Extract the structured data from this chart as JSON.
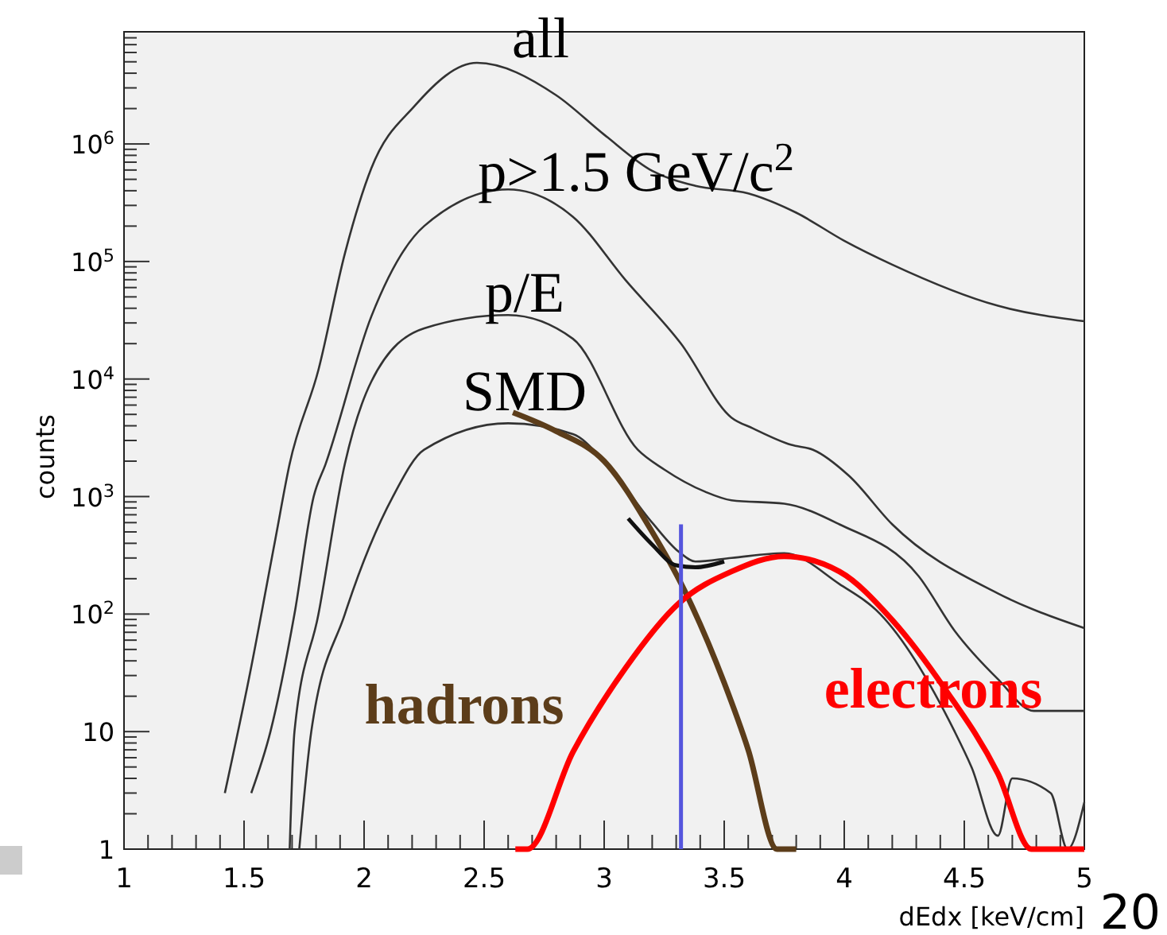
{
  "chart_data": {
    "type": "line",
    "xlabel": "dEdx [keV/cm]",
    "ylabel": "counts",
    "log": "y",
    "xlim": [
      1,
      5
    ],
    "ylim": [
      1,
      9000000
    ],
    "xticks": [
      1,
      {
        "value": 1.1,
        "label": null
      },
      {
        "value": 1.2,
        "label": null
      },
      {
        "value": 1.3,
        "label": null
      },
      {
        "value": 1.4,
        "label": null
      },
      1.5,
      {
        "value": 1.6,
        "label": null
      },
      {
        "value": 1.7,
        "label": null
      },
      {
        "value": 1.8,
        "label": null
      },
      {
        "value": 1.9,
        "label": null
      },
      2,
      {
        "value": 2.1,
        "label": null
      },
      {
        "value": 2.2,
        "label": null
      },
      {
        "value": 2.3,
        "label": null
      },
      {
        "value": 2.4,
        "label": null
      },
      2.5,
      {
        "value": 2.6,
        "label": null
      },
      {
        "value": 2.7,
        "label": null
      },
      {
        "value": 2.8,
        "label": null
      },
      {
        "value": 2.9,
        "label": null
      },
      3,
      {
        "value": 3.1,
        "label": null
      },
      {
        "value": 3.2,
        "label": null
      },
      {
        "value": 3.3,
        "label": null
      },
      {
        "value": 3.4,
        "label": null
      },
      3.5,
      {
        "value": 3.6,
        "label": null
      },
      {
        "value": 3.7,
        "label": null
      },
      {
        "value": 3.8,
        "label": null
      },
      {
        "value": 3.9,
        "label": null
      },
      4,
      {
        "value": 4.1,
        "label": null
      },
      {
        "value": 4.2,
        "label": null
      },
      {
        "value": 4.3,
        "label": null
      },
      {
        "value": 4.4,
        "label": null
      },
      4.5,
      {
        "value": 4.6,
        "label": null
      },
      {
        "value": 4.7,
        "label": null
      },
      {
        "value": 4.8,
        "label": null
      },
      {
        "value": 4.9,
        "label": null
      },
      5
    ],
    "yticks": [
      1,
      10,
      {
        "value": 100,
        "label": "10$^{2}$"
      },
      {
        "value": 1000,
        "label": "10$^{3}$"
      },
      {
        "value": 10000,
        "label": "10$^{4}$"
      },
      {
        "value": 100000,
        "label": "10$^{5}$"
      },
      {
        "value": 1000000,
        "label": "10$^{6}$"
      }
    ],
    "series": [
      {
        "name": "all",
        "color": "#333333",
        "x": [
          1.42,
          1.52,
          1.63,
          1.69,
          1.81,
          1.92,
          2.03,
          2.21,
          2.47,
          2.8,
          3.0,
          3.2,
          3.38,
          3.6,
          3.8,
          4.0,
          4.2,
          4.64,
          5.0
        ],
        "values": [
          3,
          28,
          430,
          1900,
          12000,
          117000,
          620000,
          2100000,
          4900000,
          2600000,
          1200000,
          590000,
          440000,
          380000,
          260000,
          150000,
          94000,
          42000,
          31000
        ]
      },
      {
        "name": "p>1.5 GeV/c$^{2}$",
        "color": "#333333",
        "x": [
          1.53,
          1.61,
          1.71,
          1.79,
          1.84,
          2.03,
          2.25,
          2.6,
          2.87,
          3.09,
          3.32,
          3.53,
          3.62,
          3.78,
          3.87,
          4.02,
          4.2,
          4.64,
          5.0
        ],
        "values": [
          3,
          10,
          100,
          1000,
          1900,
          34000,
          200000,
          410000,
          240000,
          69000,
          20000,
          4700,
          3800,
          2750,
          2500,
          1500,
          580,
          150,
          76
        ]
      },
      {
        "name": "p/E",
        "color": "#333333",
        "x": [
          1.69,
          1.71,
          1.81,
          1.92,
          2.03,
          2.25,
          2.6,
          2.87,
          3.14,
          3.25,
          3.42,
          3.53,
          3.75,
          3.98,
          4.31,
          4.46,
          4.64,
          4.79,
          5.0
        ],
        "values": [
          1,
          10,
          100,
          1900,
          9500,
          27000,
          35000,
          22000,
          2500,
          1700,
          1100,
          930,
          870,
          580,
          210,
          72,
          28,
          15,
          15
        ]
      },
      {
        "name": "SMD",
        "color": "#333333",
        "x": [
          1.73,
          1.78,
          1.92,
          2.12,
          2.25,
          2.6,
          2.87,
          3.0,
          3.2,
          3.31,
          3.38,
          3.53,
          3.75,
          3.98,
          4.15,
          4.46,
          4.53,
          4.64,
          4.7,
          4.86,
          4.93,
          5.0
        ],
        "values": [
          1,
          10,
          100,
          1000,
          2500,
          4200,
          3400,
          2000,
          600,
          340,
          280,
          300,
          330,
          180,
          100,
          10,
          5,
          1.3,
          4,
          3,
          1,
          2.5
        ]
      },
      {
        "name": "hadrons",
        "color": "#5c3d1a",
        "x": [
          2.62,
          2.8,
          3.0,
          3.2,
          3.33,
          3.5,
          3.6,
          3.72,
          3.8
        ],
        "values": [
          5200,
          3600,
          2000,
          500,
          166,
          26,
          7,
          1,
          1
        ]
      },
      {
        "name": "electrons",
        "color": "#ff0000",
        "x": [
          2.63,
          2.68,
          2.87,
          3.09,
          3.31,
          3.53,
          3.75,
          3.98,
          4.2,
          4.42,
          4.64,
          4.78,
          5.0
        ],
        "values": [
          1,
          1,
          6.7,
          35,
          123,
          230,
          310,
          230,
          89,
          23,
          4.4,
          1,
          1
        ]
      },
      {
        "color": "#111111",
        "x": [
          3.1,
          3.2,
          3.3,
          3.38,
          3.5
        ],
        "values": [
          650,
          390,
          260,
          250,
          280
        ]
      },
      {
        "color": "#5555dd",
        "x": [
          3.32,
          3.32
        ],
        "values": [
          1,
          580
        ]
      }
    ],
    "annotations": [
      "20"
    ]
  }
}
